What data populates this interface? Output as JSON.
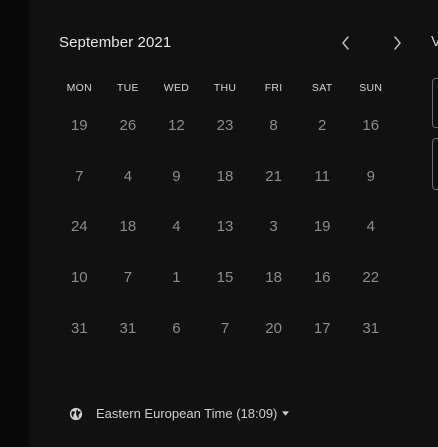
{
  "calendar": {
    "month_title": "September 2021",
    "weekdays": [
      "MON",
      "TUE",
      "WED",
      "THU",
      "FRI",
      "SAT",
      "SUN"
    ],
    "weeks": [
      [
        "19",
        "26",
        "12",
        "23",
        "8",
        "2",
        "16"
      ],
      [
        "7",
        "4",
        "9",
        "18",
        "21",
        "11",
        "9"
      ],
      [
        "24",
        "18",
        "4",
        "13",
        "3",
        "19",
        "4"
      ],
      [
        "10",
        "7",
        "1",
        "15",
        "18",
        "16",
        "22"
      ],
      [
        "31",
        "31",
        "6",
        "7",
        "20",
        "17",
        "31"
      ]
    ]
  },
  "nav": {
    "prev_icon": "chevron-left-icon",
    "next_icon": "chevron-right-icon"
  },
  "timezone": {
    "label": "Eastern European Time (18:09)",
    "icon": "globe-icon",
    "caret_icon": "caret-down-icon"
  },
  "side_panel": {
    "partial_text": "V"
  },
  "colors": {
    "background": "#111111",
    "title_text": "#e6e6e6",
    "day_text": "#8c8c8c",
    "weekday_text": "#d6d6d6"
  }
}
